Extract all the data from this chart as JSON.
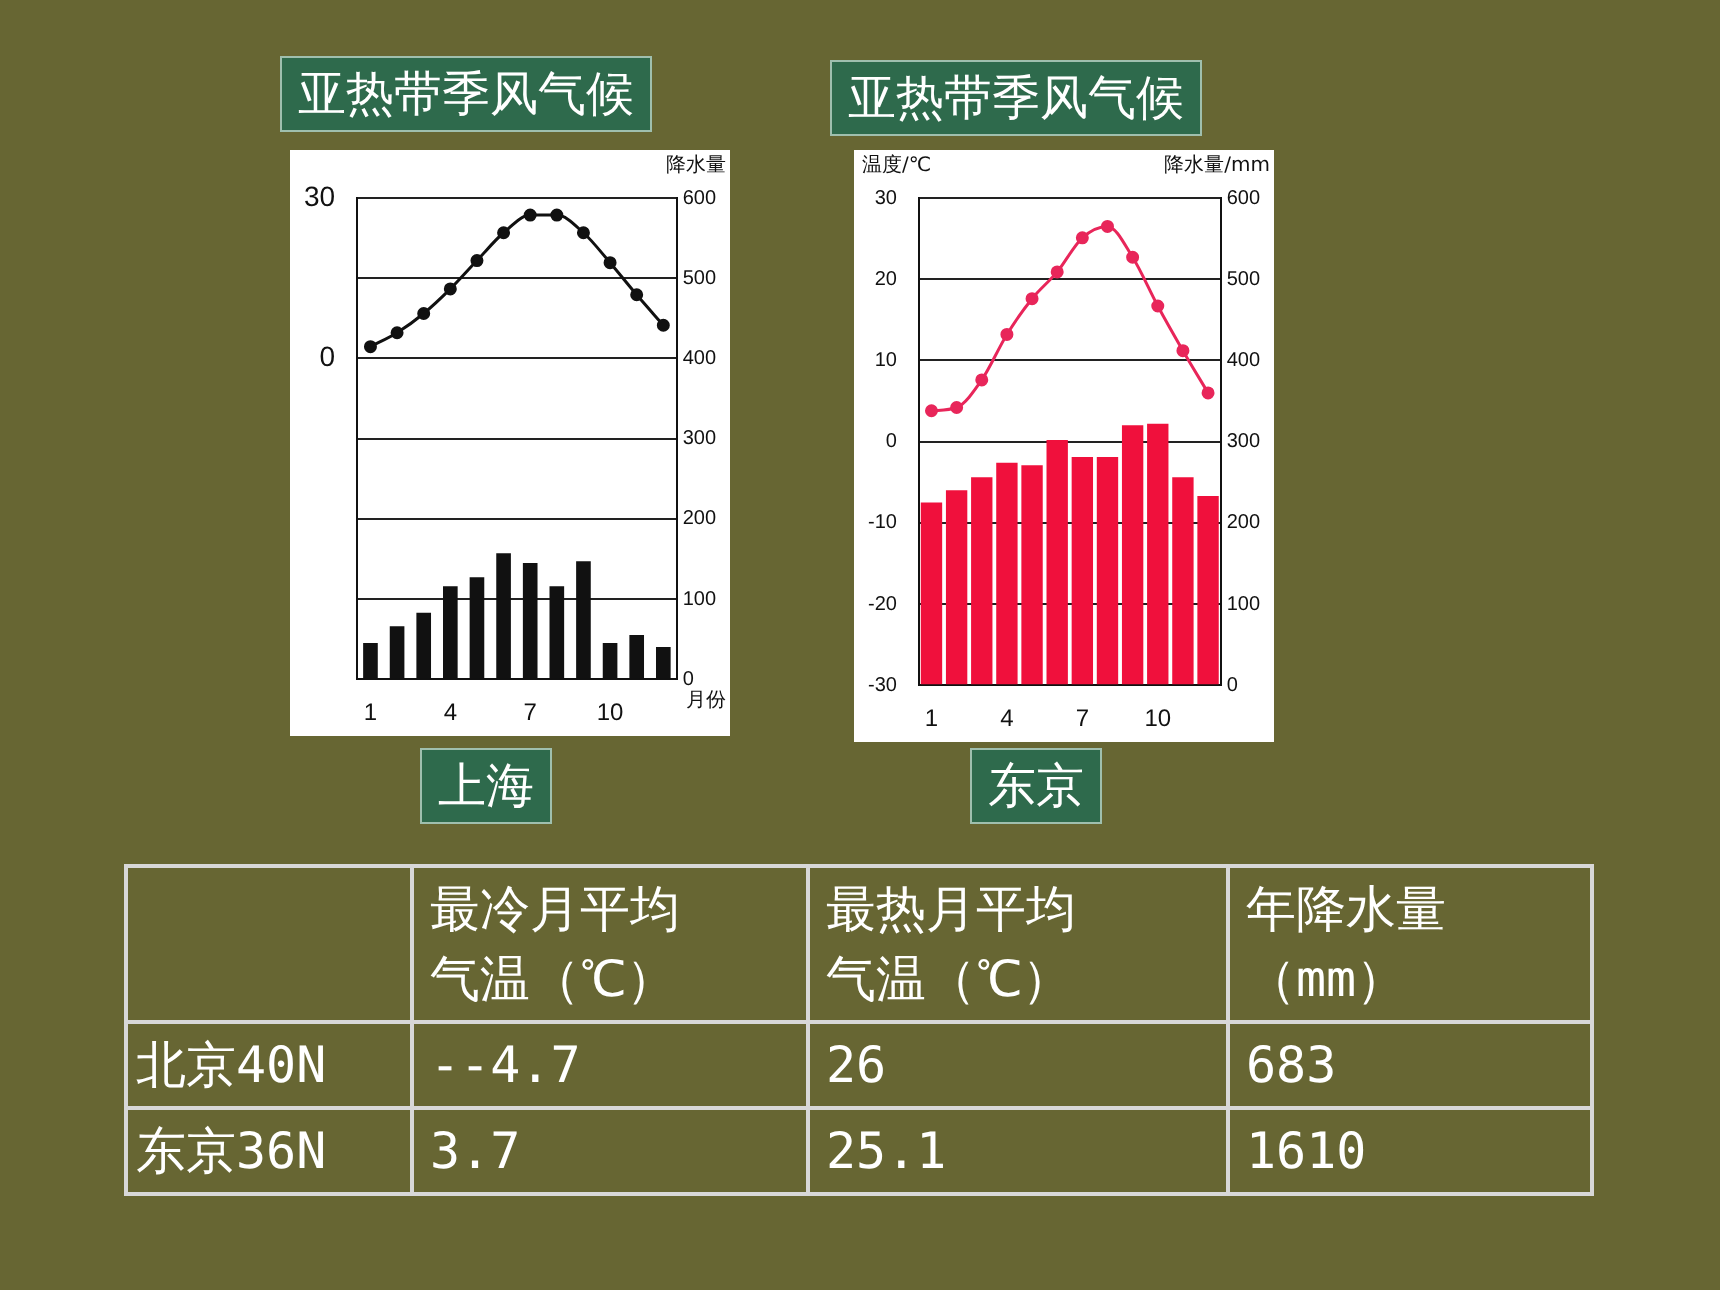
{
  "chart_data": [
    {
      "type": "bar",
      "title": "亚热带季风气候",
      "xlabel": "月份",
      "y2label": "降水量",
      "annotations": [
        "上海"
      ],
      "categories": [
        "1",
        null,
        null,
        "4",
        null,
        null,
        "7",
        null,
        null,
        "10",
        null,
        null
      ],
      "series": [
        {
          "type": "bar",
          "axis": "y2",
          "color": "#111111",
          "values": [
            45,
            66,
            83,
            116,
            127,
            157,
            145,
            116,
            147,
            45,
            55,
            40
          ]
        },
        {
          "type": "line",
          "axis": "y",
          "color": "#111111",
          "values": [
            2.2,
            4.8,
            8.4,
            13,
            18.3,
            23.5,
            26.8,
            26.8,
            23.5,
            17.9,
            11.9,
            6.2
          ]
        }
      ],
      "ylim": [
        -60,
        30
      ],
      "yticks": [
        0,
        30
      ],
      "y2lim": [
        0,
        600
      ],
      "y2ticks": [
        0,
        100,
        200,
        300,
        400,
        500,
        600
      ],
      "grid": true,
      "marker": "circle"
    },
    {
      "type": "bar",
      "title": "亚热带季风气候",
      "ylabel": "温度/℃",
      "y2label": "降水量/mm",
      "annotations": [
        "东京"
      ],
      "categories": [
        "1",
        null,
        null,
        "4",
        null,
        null,
        "7",
        null,
        null,
        "10",
        null,
        null
      ],
      "series": [
        {
          "type": "bar",
          "axis": "y2",
          "color": "#f0103c",
          "values": [
            225,
            240,
            256,
            274,
            271,
            302,
            281,
            281,
            320,
            322,
            256,
            233
          ]
        },
        {
          "type": "line",
          "axis": "y",
          "color": "#e8265a",
          "values": [
            3.8,
            4.2,
            7.6,
            13.2,
            17.6,
            20.9,
            25.1,
            26.5,
            22.7,
            16.7,
            11.2,
            6.0
          ]
        }
      ],
      "ylim": [
        -30,
        30
      ],
      "yticks": [
        -30,
        -20,
        -10,
        0,
        10,
        20,
        30
      ],
      "y2lim": [
        0,
        600
      ],
      "y2ticks": [
        0,
        100,
        200,
        300,
        400,
        500,
        600
      ],
      "grid": true,
      "marker": "circle"
    },
    {
      "type": "other",
      "categories": [
        null,
        "最冷月平均气温（℃）",
        "最热月平均气温（℃）",
        "年降水量（mm）"
      ],
      "y_categories": [
        "北京40N",
        "东京36N"
      ],
      "cell_labels": [
        [
          "--4.7",
          "26",
          "683"
        ],
        [
          "3.7",
          "25.1",
          "1610"
        ]
      ]
    }
  ]
}
